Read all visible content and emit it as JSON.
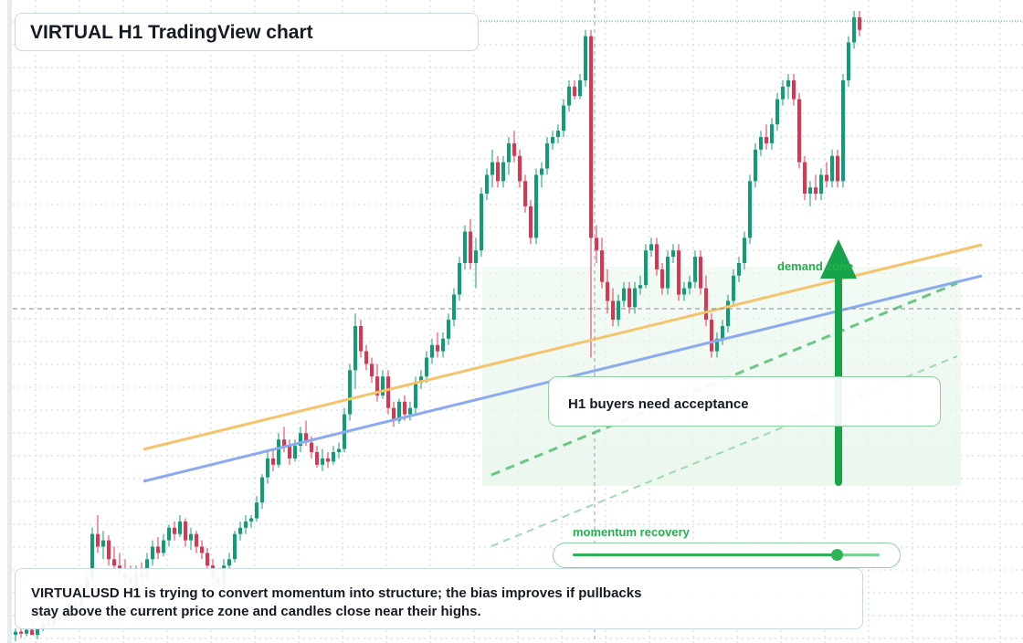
{
  "title": "VIRTUAL H1 TradingView chart",
  "callout": "H1 buyers need acceptance",
  "zone_label": "demand zone",
  "momentum": {
    "label": "momentum recovery",
    "level": 0.86
  },
  "summary": "VIRTUALUSD H1 is trying to convert momentum into structure; the bias improves if pullbacks stay above the current price zone and candles close near their highs.",
  "colors": {
    "bull": "#0f9d74",
    "bear": "#e0334f",
    "accent_green": "#23b14d",
    "trend_orange": "#f6c36b",
    "trend_blue": "#8caaf0",
    "grid": "#cfd6de"
  },
  "chart_data": {
    "type": "candlestick",
    "price_axis": [
      0,
      100
    ],
    "candles": [
      {
        "o": 1.0,
        "h": 2.0,
        "l": 0.0,
        "c": 1.5
      },
      {
        "o": 1.5,
        "h": 2.5,
        "l": 0.5,
        "c": 1.2
      },
      {
        "o": 1.2,
        "h": 2.8,
        "l": 0.8,
        "c": 1.8
      },
      {
        "o": 1.8,
        "h": 3.2,
        "l": 1.2,
        "c": 1.0
      },
      {
        "o": 1.0,
        "h": 2.6,
        "l": 0.3,
        "c": 2.0
      },
      {
        "o": 2.0,
        "h": 3.6,
        "l": 1.6,
        "c": 3.0
      },
      {
        "o": 3.0,
        "h": 4.0,
        "l": 2.2,
        "c": 2.6
      },
      {
        "o": 2.6,
        "h": 4.5,
        "l": 2.0,
        "c": 4.0
      },
      {
        "o": 4.0,
        "h": 5.0,
        "l": 3.2,
        "c": 3.4
      },
      {
        "o": 3.4,
        "h": 5.4,
        "l": 2.8,
        "c": 5.0
      },
      {
        "o": 5.0,
        "h": 6.5,
        "l": 4.4,
        "c": 6.0
      },
      {
        "o": 6.0,
        "h": 8.0,
        "l": 5.0,
        "c": 5.5
      },
      {
        "o": 5.5,
        "h": 7.5,
        "l": 4.8,
        "c": 7.0
      },
      {
        "o": 7.0,
        "h": 11.0,
        "l": 6.5,
        "c": 10.0
      },
      {
        "o": 10.0,
        "h": 18.0,
        "l": 9.5,
        "c": 17.0
      },
      {
        "o": 17.0,
        "h": 20.0,
        "l": 14.0,
        "c": 15.0
      },
      {
        "o": 15.0,
        "h": 17.5,
        "l": 13.0,
        "c": 16.0
      },
      {
        "o": 16.0,
        "h": 16.8,
        "l": 12.0,
        "c": 13.0
      },
      {
        "o": 13.0,
        "h": 15.0,
        "l": 11.0,
        "c": 12.0
      },
      {
        "o": 12.0,
        "h": 14.0,
        "l": 10.0,
        "c": 11.0
      },
      {
        "o": 11.0,
        "h": 13.0,
        "l": 9.0,
        "c": 10.0
      },
      {
        "o": 10.0,
        "h": 12.0,
        "l": 8.0,
        "c": 9.0
      },
      {
        "o": 9.0,
        "h": 12.0,
        "l": 8.5,
        "c": 11.0
      },
      {
        "o": 11.0,
        "h": 12.5,
        "l": 9.0,
        "c": 10.0
      },
      {
        "o": 10.0,
        "h": 14.0,
        "l": 9.5,
        "c": 13.0
      },
      {
        "o": 13.0,
        "h": 16.0,
        "l": 12.0,
        "c": 15.0
      },
      {
        "o": 15.0,
        "h": 16.5,
        "l": 13.0,
        "c": 14.0
      },
      {
        "o": 14.0,
        "h": 17.0,
        "l": 13.5,
        "c": 16.0
      },
      {
        "o": 16.0,
        "h": 18.5,
        "l": 15.0,
        "c": 18.0
      },
      {
        "o": 18.0,
        "h": 19.0,
        "l": 16.0,
        "c": 17.0
      },
      {
        "o": 17.0,
        "h": 20.0,
        "l": 16.5,
        "c": 19.0
      },
      {
        "o": 19.0,
        "h": 19.5,
        "l": 15.0,
        "c": 16.0
      },
      {
        "o": 16.0,
        "h": 18.0,
        "l": 14.5,
        "c": 17.0
      },
      {
        "o": 17.0,
        "h": 17.5,
        "l": 14.0,
        "c": 15.0
      },
      {
        "o": 15.0,
        "h": 16.0,
        "l": 13.0,
        "c": 14.0
      },
      {
        "o": 14.0,
        "h": 14.8,
        "l": 11.5,
        "c": 12.0
      },
      {
        "o": 12.0,
        "h": 13.0,
        "l": 9.0,
        "c": 10.0
      },
      {
        "o": 10.0,
        "h": 11.0,
        "l": 8.0,
        "c": 9.0
      },
      {
        "o": 9.0,
        "h": 13.0,
        "l": 8.5,
        "c": 12.0
      },
      {
        "o": 12.0,
        "h": 14.0,
        "l": 11.0,
        "c": 13.0
      },
      {
        "o": 13.0,
        "h": 17.5,
        "l": 12.5,
        "c": 17.0
      },
      {
        "o": 17.0,
        "h": 19.0,
        "l": 16.0,
        "c": 18.0
      },
      {
        "o": 18.0,
        "h": 20.0,
        "l": 17.0,
        "c": 19.0
      },
      {
        "o": 19.0,
        "h": 20.0,
        "l": 18.0,
        "c": 19.5
      },
      {
        "o": 19.5,
        "h": 23.0,
        "l": 19.0,
        "c": 22.0
      },
      {
        "o": 22.0,
        "h": 26.5,
        "l": 21.0,
        "c": 26.0
      },
      {
        "o": 26.0,
        "h": 30.0,
        "l": 25.0,
        "c": 29.0
      },
      {
        "o": 29.0,
        "h": 30.5,
        "l": 27.0,
        "c": 28.0
      },
      {
        "o": 28.0,
        "h": 33.0,
        "l": 27.5,
        "c": 32.0
      },
      {
        "o": 32.0,
        "h": 34.0,
        "l": 30.0,
        "c": 31.0
      },
      {
        "o": 31.0,
        "h": 32.0,
        "l": 28.0,
        "c": 29.0
      },
      {
        "o": 29.0,
        "h": 32.0,
        "l": 28.5,
        "c": 31.0
      },
      {
        "o": 31.0,
        "h": 34.0,
        "l": 30.0,
        "c": 33.0
      },
      {
        "o": 33.0,
        "h": 35.0,
        "l": 31.0,
        "c": 31.5
      },
      {
        "o": 31.5,
        "h": 32.5,
        "l": 29.0,
        "c": 30.0
      },
      {
        "o": 30.0,
        "h": 31.0,
        "l": 27.5,
        "c": 28.0
      },
      {
        "o": 28.0,
        "h": 30.5,
        "l": 27.0,
        "c": 29.0
      },
      {
        "o": 29.0,
        "h": 30.0,
        "l": 27.5,
        "c": 28.5
      },
      {
        "o": 28.5,
        "h": 31.0,
        "l": 28.0,
        "c": 30.0
      },
      {
        "o": 30.0,
        "h": 31.5,
        "l": 29.0,
        "c": 30.5
      },
      {
        "o": 30.5,
        "h": 37.0,
        "l": 30.0,
        "c": 36.0
      },
      {
        "o": 36.0,
        "h": 44.0,
        "l": 35.0,
        "c": 43.0
      },
      {
        "o": 43.0,
        "h": 52.0,
        "l": 40.0,
        "c": 50.0
      },
      {
        "o": 50.0,
        "h": 51.0,
        "l": 45.0,
        "c": 46.0
      },
      {
        "o": 46.0,
        "h": 47.0,
        "l": 43.0,
        "c": 44.0
      },
      {
        "o": 44.0,
        "h": 45.0,
        "l": 41.0,
        "c": 42.0
      },
      {
        "o": 42.0,
        "h": 44.0,
        "l": 38.0,
        "c": 39.0
      },
      {
        "o": 39.0,
        "h": 43.0,
        "l": 38.5,
        "c": 42.0
      },
      {
        "o": 42.0,
        "h": 43.0,
        "l": 36.0,
        "c": 37.0
      },
      {
        "o": 37.0,
        "h": 38.0,
        "l": 34.0,
        "c": 35.0
      },
      {
        "o": 35.0,
        "h": 38.5,
        "l": 34.5,
        "c": 38.0
      },
      {
        "o": 38.0,
        "h": 39.0,
        "l": 35.0,
        "c": 36.0
      },
      {
        "o": 36.0,
        "h": 38.0,
        "l": 35.0,
        "c": 37.0
      },
      {
        "o": 37.0,
        "h": 42.0,
        "l": 36.0,
        "c": 41.0
      },
      {
        "o": 41.0,
        "h": 43.0,
        "l": 40.0,
        "c": 42.0
      },
      {
        "o": 42.0,
        "h": 46.0,
        "l": 41.0,
        "c": 45.0
      },
      {
        "o": 45.0,
        "h": 48.0,
        "l": 44.0,
        "c": 47.0
      },
      {
        "o": 47.0,
        "h": 49.0,
        "l": 45.0,
        "c": 46.0
      },
      {
        "o": 46.0,
        "h": 49.0,
        "l": 45.0,
        "c": 48.0
      },
      {
        "o": 48.0,
        "h": 52.0,
        "l": 47.0,
        "c": 51.0
      },
      {
        "o": 51.0,
        "h": 56.0,
        "l": 50.0,
        "c": 55.0
      },
      {
        "o": 55.0,
        "h": 61.0,
        "l": 54.0,
        "c": 60.0
      },
      {
        "o": 60.0,
        "h": 66.0,
        "l": 59.0,
        "c": 65.0
      },
      {
        "o": 65.0,
        "h": 67.0,
        "l": 59.0,
        "c": 60.0
      },
      {
        "o": 60.0,
        "h": 64.0,
        "l": 56.0,
        "c": 62.0
      },
      {
        "o": 62.0,
        "h": 72.0,
        "l": 61.0,
        "c": 71.0
      },
      {
        "o": 71.0,
        "h": 75.0,
        "l": 70.0,
        "c": 74.0
      },
      {
        "o": 74.0,
        "h": 78.0,
        "l": 72.0,
        "c": 76.0
      },
      {
        "o": 76.0,
        "h": 77.0,
        "l": 72.0,
        "c": 73.0
      },
      {
        "o": 73.0,
        "h": 77.0,
        "l": 72.0,
        "c": 76.0
      },
      {
        "o": 76.0,
        "h": 80.0,
        "l": 74.0,
        "c": 79.0
      },
      {
        "o": 79.0,
        "h": 81.0,
        "l": 76.0,
        "c": 77.0
      },
      {
        "o": 77.0,
        "h": 78.0,
        "l": 72.0,
        "c": 73.0
      },
      {
        "o": 73.0,
        "h": 74.0,
        "l": 68.0,
        "c": 69.0
      },
      {
        "o": 69.0,
        "h": 70.0,
        "l": 63.0,
        "c": 64.0
      },
      {
        "o": 64.0,
        "h": 75.0,
        "l": 63.0,
        "c": 74.0
      },
      {
        "o": 74.0,
        "h": 76.0,
        "l": 72.0,
        "c": 75.0
      },
      {
        "o": 75.0,
        "h": 80.0,
        "l": 74.0,
        "c": 79.0
      },
      {
        "o": 79.0,
        "h": 81.0,
        "l": 78.0,
        "c": 80.0
      },
      {
        "o": 80.0,
        "h": 82.0,
        "l": 79.0,
        "c": 81.0
      },
      {
        "o": 81.0,
        "h": 86.0,
        "l": 80.0,
        "c": 85.0
      },
      {
        "o": 85.0,
        "h": 89.0,
        "l": 84.0,
        "c": 88.0
      },
      {
        "o": 88.0,
        "h": 89.0,
        "l": 86.0,
        "c": 86.5
      },
      {
        "o": 86.5,
        "h": 90.0,
        "l": 86.0,
        "c": 89.0
      },
      {
        "o": 89.0,
        "h": 97.0,
        "l": 88.0,
        "c": 96.0
      },
      {
        "o": 96.0,
        "h": 97.0,
        "l": 45.0,
        "c": 64.0
      },
      {
        "o": 64.0,
        "h": 66.0,
        "l": 60.0,
        "c": 62.0
      },
      {
        "o": 62.0,
        "h": 64.0,
        "l": 56.0,
        "c": 57.0
      },
      {
        "o": 57.0,
        "h": 59.0,
        "l": 52.0,
        "c": 54.0
      },
      {
        "o": 54.0,
        "h": 56.0,
        "l": 50.0,
        "c": 51.0
      },
      {
        "o": 51.0,
        "h": 55.0,
        "l": 50.0,
        "c": 54.0
      },
      {
        "o": 54.0,
        "h": 57.0,
        "l": 53.0,
        "c": 56.0
      },
      {
        "o": 56.0,
        "h": 57.0,
        "l": 52.0,
        "c": 53.0
      },
      {
        "o": 53.0,
        "h": 57.0,
        "l": 52.0,
        "c": 56.0
      },
      {
        "o": 56.0,
        "h": 58.0,
        "l": 55.0,
        "c": 56.5
      },
      {
        "o": 56.5,
        "h": 63.0,
        "l": 56.0,
        "c": 62.0
      },
      {
        "o": 62.0,
        "h": 64.0,
        "l": 61.0,
        "c": 63.0
      },
      {
        "o": 63.0,
        "h": 64.0,
        "l": 58.0,
        "c": 59.0
      },
      {
        "o": 59.0,
        "h": 60.0,
        "l": 55.0,
        "c": 56.0
      },
      {
        "o": 56.0,
        "h": 62.0,
        "l": 55.0,
        "c": 61.0
      },
      {
        "o": 61.0,
        "h": 63.0,
        "l": 60.0,
        "c": 62.0
      },
      {
        "o": 62.0,
        "h": 63.0,
        "l": 54.0,
        "c": 55.0
      },
      {
        "o": 55.0,
        "h": 57.0,
        "l": 54.0,
        "c": 56.0
      },
      {
        "o": 56.0,
        "h": 58.0,
        "l": 55.0,
        "c": 57.0
      },
      {
        "o": 57.0,
        "h": 62.0,
        "l": 56.0,
        "c": 61.0
      },
      {
        "o": 61.0,
        "h": 62.0,
        "l": 55.0,
        "c": 56.0
      },
      {
        "o": 56.0,
        "h": 58.0,
        "l": 50.0,
        "c": 51.0
      },
      {
        "o": 51.0,
        "h": 52.0,
        "l": 45.0,
        "c": 46.0
      },
      {
        "o": 46.0,
        "h": 49.0,
        "l": 45.0,
        "c": 48.0
      },
      {
        "o": 48.0,
        "h": 51.0,
        "l": 47.0,
        "c": 50.0
      },
      {
        "o": 50.0,
        "h": 55.0,
        "l": 49.0,
        "c": 54.0
      },
      {
        "o": 54.0,
        "h": 59.0,
        "l": 53.0,
        "c": 58.0
      },
      {
        "o": 58.0,
        "h": 61.0,
        "l": 57.0,
        "c": 60.0
      },
      {
        "o": 60.0,
        "h": 65.0,
        "l": 59.0,
        "c": 64.0
      },
      {
        "o": 64.0,
        "h": 74.0,
        "l": 63.0,
        "c": 73.0
      },
      {
        "o": 73.0,
        "h": 79.0,
        "l": 72.0,
        "c": 78.0
      },
      {
        "o": 78.0,
        "h": 81.0,
        "l": 77.0,
        "c": 80.0
      },
      {
        "o": 80.0,
        "h": 82.0,
        "l": 78.0,
        "c": 79.0
      },
      {
        "o": 79.0,
        "h": 83.0,
        "l": 78.0,
        "c": 82.0
      },
      {
        "o": 82.0,
        "h": 87.0,
        "l": 81.0,
        "c": 86.0
      },
      {
        "o": 86.0,
        "h": 89.0,
        "l": 85.0,
        "c": 88.0
      },
      {
        "o": 88.0,
        "h": 90.0,
        "l": 86.0,
        "c": 89.0
      },
      {
        "o": 89.0,
        "h": 90.0,
        "l": 85.0,
        "c": 86.0
      },
      {
        "o": 86.0,
        "h": 87.0,
        "l": 75.0,
        "c": 76.0
      },
      {
        "o": 76.0,
        "h": 77.0,
        "l": 70.0,
        "c": 71.0
      },
      {
        "o": 71.0,
        "h": 73.0,
        "l": 69.0,
        "c": 72.0
      },
      {
        "o": 72.0,
        "h": 74.0,
        "l": 70.0,
        "c": 71.0
      },
      {
        "o": 71.0,
        "h": 75.0,
        "l": 70.0,
        "c": 74.0
      },
      {
        "o": 74.0,
        "h": 76.0,
        "l": 72.0,
        "c": 73.0
      },
      {
        "o": 73.0,
        "h": 78.0,
        "l": 72.0,
        "c": 77.0
      },
      {
        "o": 77.0,
        "h": 78.0,
        "l": 72.0,
        "c": 73.0
      },
      {
        "o": 73.0,
        "h": 90.0,
        "l": 72.0,
        "c": 89.0
      },
      {
        "o": 89.0,
        "h": 96.0,
        "l": 88.0,
        "c": 95.0
      },
      {
        "o": 95.0,
        "h": 100.0,
        "l": 94.0,
        "c": 99.0
      },
      {
        "o": 99.0,
        "h": 100.0,
        "l": 96.0,
        "c": 97.0
      }
    ]
  }
}
